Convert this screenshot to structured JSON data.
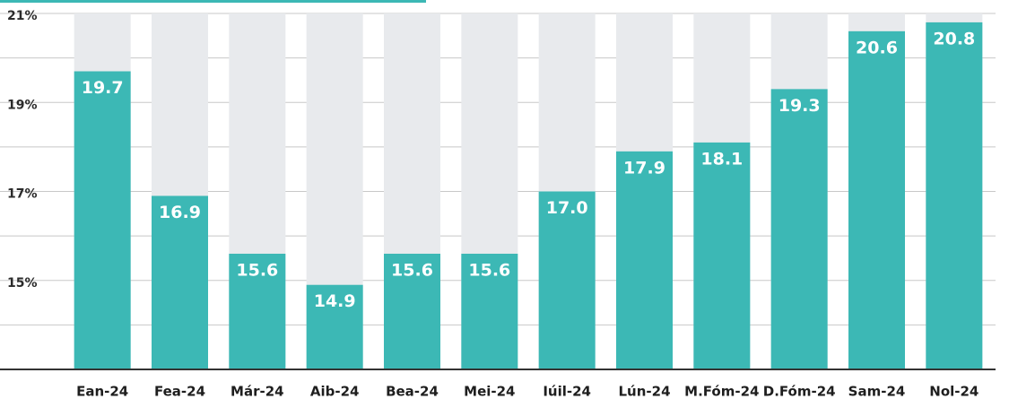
{
  "chart_data": {
    "type": "bar",
    "categories": [
      "Ean-24",
      "Fea-24",
      "Már-24",
      "Aib-24",
      "Bea-24",
      "Mei-24",
      "Iúil-24",
      "Lún-24",
      "M.Fóm-24",
      "D.Fóm-24",
      "Sam-24",
      "Nol-24"
    ],
    "values": [
      19.7,
      16.9,
      15.6,
      14.9,
      15.6,
      15.6,
      17.0,
      17.9,
      18.1,
      19.3,
      20.6,
      20.8
    ],
    "value_labels": [
      "19.7",
      "16.9",
      "15.6",
      "14.9",
      "15.6",
      "15.6",
      "17.0",
      "17.9",
      "18.1",
      "19.3",
      "20.6",
      "20.8"
    ],
    "color": "#3cb8b5",
    "track_color": "#e8eaed",
    "ylim": [
      13,
      21
    ],
    "yticks": [
      {
        "value": 15,
        "label": "15%"
      },
      {
        "value": 17,
        "label": "17%"
      },
      {
        "value": 19,
        "label": "19%"
      },
      {
        "value": 21,
        "label": "21%"
      }
    ],
    "minor_yticks": [
      14,
      16,
      18,
      20
    ],
    "grid": true
  }
}
